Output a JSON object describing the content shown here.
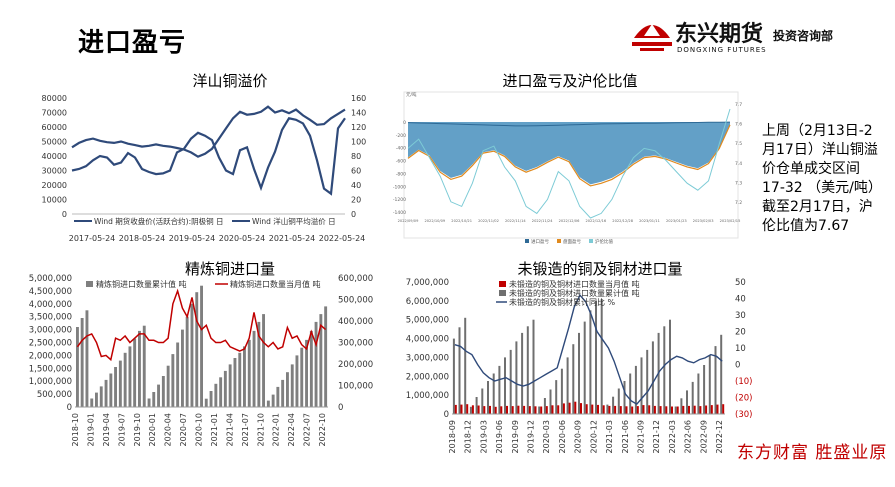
{
  "slide": {
    "title": "进口盈亏",
    "logo_cn": "东兴期货",
    "logo_en": "DONGXING FUTURES",
    "logo_sub": "投资咨询部",
    "note": "上周（2月13日-2月17日）洋山铜溢价仓单成交区间17-32 （美元/吨）截至2月17日，沪伦比值为7.67",
    "footer_brand": "东方财富 胜盛业原",
    "colors": {
      "logo_red": "#c00000",
      "navy": "#2f4a7a",
      "gray_bar": "#7f7f7f",
      "red_line": "#c00000"
    }
  },
  "chart_data": [
    {
      "id": "yangshan",
      "type": "line",
      "title": "洋山铜溢价",
      "x_ticks": [
        "2017-05-24",
        "2018-05-24",
        "2019-05-24",
        "2020-05-24",
        "2021-05-24",
        "2022-05-24"
      ],
      "y_left_ticks": [
        "0",
        "10000",
        "20000",
        "30000",
        "40000",
        "50000",
        "60000",
        "70000",
        "80000"
      ],
      "y_right_ticks": [
        "0",
        "20",
        "40",
        "60",
        "80",
        "100",
        "120",
        "140",
        "160"
      ],
      "ylim_left": [
        0,
        80000
      ],
      "ylim_right": [
        0,
        160
      ],
      "series": [
        {
          "name": "Wind 期货收盘价(活跃合约):阴极铜 日",
          "axis": "left",
          "values": [
            46000,
            49000,
            51000,
            52000,
            50500,
            49500,
            49000,
            50000,
            48500,
            47500,
            46500,
            47000,
            48000,
            47000,
            46500,
            45500,
            44500,
            42500,
            39500,
            41500,
            45000,
            52000,
            59000,
            66000,
            70500,
            68500,
            69000,
            70500,
            74000,
            70000,
            71500,
            69500,
            72000,
            68000,
            65000,
            61500,
            62000,
            66000,
            69000,
            72000
          ]
        },
        {
          "name": "Wind 洋山铜平均溢价 日",
          "axis": "right",
          "values": [
            60,
            62,
            66,
            74,
            80,
            78,
            68,
            71,
            84,
            78,
            62,
            58,
            55,
            56,
            60,
            85,
            90,
            104,
            112,
            108,
            102,
            78,
            60,
            55,
            88,
            92,
            62,
            36,
            64,
            86,
            116,
            132,
            130,
            125,
            108,
            74,
            35,
            28,
            118,
            132
          ]
        }
      ]
    },
    {
      "id": "import_profit",
      "type": "area",
      "title": "进口盈亏及沪伦比值",
      "y_left_unit": "元/吨",
      "y_left_ticks": [
        "0",
        "-200",
        "-400",
        "-600",
        "-800",
        "-1000",
        "-1200",
        "-1400"
      ],
      "y_right_ticks": [
        "7.7",
        "7.6",
        "7.5",
        "7.4",
        "7.3",
        "7.2"
      ],
      "x_ticks": [
        "2022/09/09",
        "2022/10/09",
        "2022/10/21",
        "2022/11/02",
        "2022/11/14",
        "2022/11/24",
        "2022/12/06",
        "2022/12/16",
        "2022/12/28",
        "2023/01/11",
        "2023/01/23",
        "2023/02/03",
        "2023/02/15"
      ],
      "legend": [
        "进口盈亏",
        "盘面盈亏",
        "沪伦比值"
      ],
      "ylim_left": [
        -1400,
        0
      ],
      "ylim_right": [
        7.2,
        7.7
      ],
      "series": [
        {
          "name": "进口盈亏",
          "axis": "left",
          "values": [
            -10,
            -15,
            -20,
            -25,
            -30,
            -35,
            -40,
            -45,
            -50,
            -55,
            -60,
            -60,
            -58,
            -55,
            -50,
            -45,
            -40,
            -35,
            -30,
            -28,
            -25,
            -22,
            -20,
            -18,
            -15,
            -12,
            -10,
            -8,
            -5,
            -3,
            -1
          ]
        },
        {
          "name": "盘面盈亏",
          "axis": "left",
          "values": [
            -550,
            -430,
            -520,
            -760,
            -870,
            -820,
            -660,
            -470,
            -440,
            -520,
            -680,
            -760,
            -700,
            -610,
            -530,
            -600,
            -860,
            -970,
            -930,
            -870,
            -770,
            -640,
            -540,
            -520,
            -560,
            -620,
            -680,
            -720,
            -630,
            -400,
            -40
          ]
        },
        {
          "name": "沪伦比值",
          "axis": "right",
          "values": [
            7.5,
            7.54,
            7.46,
            7.38,
            7.27,
            7.25,
            7.35,
            7.49,
            7.51,
            7.42,
            7.36,
            7.25,
            7.22,
            7.28,
            7.4,
            7.36,
            7.25,
            7.2,
            7.22,
            7.28,
            7.38,
            7.46,
            7.5,
            7.49,
            7.45,
            7.4,
            7.35,
            7.32,
            7.36,
            7.52,
            7.67
          ]
        }
      ]
    },
    {
      "id": "refined_copper",
      "type": "bar",
      "title": "精炼铜进口量",
      "x_ticks": [
        "2018-10",
        "2019-01",
        "2019-04",
        "2019-07",
        "2019-10",
        "2020-01",
        "2020-04",
        "2020-07",
        "2020-10",
        "2021-01",
        "2021-04",
        "2021-07",
        "2021-10",
        "2022-01",
        "2022-04",
        "2022-07",
        "2022-10"
      ],
      "y_left_ticks": [
        "0",
        "500,000",
        "1,000,000",
        "1,500,000",
        "2,000,000",
        "2,500,000",
        "3,000,000",
        "3,500,000",
        "4,000,000",
        "4,500,000",
        "5,000,000"
      ],
      "y_right_ticks": [
        "0",
        "100,000",
        "200,000",
        "300,000",
        "400,000",
        "500,000",
        "600,000"
      ],
      "ylim_left": [
        0,
        5000000
      ],
      "ylim_right": [
        0,
        600000
      ],
      "legend": [
        "精炼铜进口数量累计值 吨",
        "精炼铜进口数量当月值 吨"
      ],
      "series": [
        {
          "name": "精炼铜进口数量累计值 吨",
          "axis": "left",
          "values": [
            3100000,
            3450000,
            3750000,
            330000,
            560000,
            800000,
            1050000,
            1300000,
            1550000,
            1800000,
            2100000,
            2350000,
            2650000,
            2950000,
            3150000,
            330000,
            580000,
            870000,
            1200000,
            1600000,
            2050000,
            2500000,
            3000000,
            3500000,
            4000000,
            4450000,
            4700000,
            320000,
            620000,
            900000,
            1150000,
            1400000,
            1650000,
            1900000,
            2100000,
            2350000,
            2600000,
            2950000,
            3300000,
            3600000,
            250000,
            480000,
            780000,
            1050000,
            1350000,
            1650000,
            2000000,
            2300000,
            2600000,
            2950000,
            3300000,
            3600000,
            3900000
          ]
        },
        {
          "name": "精炼铜进口数量当月值 吨",
          "axis": "right",
          "values": [
            280000,
            310000,
            330000,
            340000,
            300000,
            235000,
            240000,
            220000,
            320000,
            310000,
            330000,
            300000,
            320000,
            340000,
            340000,
            310000,
            310000,
            300000,
            300000,
            320000,
            480000,
            540000,
            460000,
            420000,
            510000,
            400000,
            360000,
            380000,
            320000,
            300000,
            300000,
            310000,
            280000,
            270000,
            260000,
            270000,
            320000,
            440000,
            330000,
            300000,
            280000,
            300000,
            270000,
            280000,
            370000,
            320000,
            330000,
            290000,
            270000,
            350000,
            290000,
            380000,
            360000
          ]
        }
      ]
    },
    {
      "id": "unwrought_copper",
      "type": "bar",
      "title": "未锻造的铜及铜材进口量",
      "x_ticks": [
        "2018-09",
        "2018-12",
        "2019-03",
        "2019-06",
        "2019-09",
        "2019-12",
        "2020-03",
        "2020-06",
        "2020-09",
        "2020-12",
        "2021-03",
        "2021-06",
        "2021-09",
        "2021-12",
        "2022-03",
        "2022-06",
        "2022-09",
        "2022-12"
      ],
      "y_left_ticks": [
        "0",
        "1,000,000",
        "2,000,000",
        "3,000,000",
        "4,000,000",
        "5,000,000",
        "6,000,000",
        "7,000,000"
      ],
      "y_right_ticks": [
        "(30)",
        "(20)",
        "(10)",
        "0",
        "10",
        "20",
        "30",
        "40",
        "50"
      ],
      "ylim_left": [
        0,
        7000000
      ],
      "ylim_right": [
        -30,
        50
      ],
      "legend": [
        "未锻造的铜及铜材进口数量当月值 吨",
        "未锻造的铜及铜材进口数量累计值 吨",
        "未锻造的铜及铜材累计同比 %"
      ],
      "series": [
        {
          "name": "未锻造的铜及铜材进口数量当月值 吨",
          "axis": "left",
          "values": [
            480000,
            500000,
            520000,
            460000,
            450000,
            420000,
            430000,
            380000,
            410000,
            430000,
            420000,
            440000,
            430000,
            420000,
            410000,
            400000,
            420000,
            460000,
            460000,
            560000,
            600000,
            650000,
            580000,
            520000,
            500000,
            480000,
            460000,
            430000,
            430000,
            420000,
            410000,
            400000,
            420000,
            470000,
            460000,
            430000,
            420000,
            410000,
            400000,
            400000,
            430000,
            430000,
            440000,
            420000,
            450000,
            470000,
            500000,
            520000
          ]
        },
        {
          "name": "未锻造的铜及铜材进口数量累计值 吨",
          "axis": "left",
          "values": [
            4000000,
            4600000,
            5100000,
            380000,
            900000,
            1350000,
            1750000,
            2150000,
            2550000,
            3000000,
            3400000,
            3850000,
            4300000,
            4650000,
            5000000,
            400000,
            850000,
            1300000,
            1800000,
            2400000,
            3000000,
            3700000,
            4300000,
            4900000,
            5500000,
            6000000,
            6100000,
            500000,
            920000,
            1350000,
            1750000,
            2150000,
            2550000,
            3000000,
            3400000,
            3850000,
            4300000,
            4650000,
            5000000,
            400000,
            830000,
            1250000,
            1700000,
            2150000,
            2600000,
            3100000,
            3600000,
            4200000
          ]
        },
        {
          "name": "未锻造的铜及铜材累计同比 %",
          "axis": "right",
          "values": [
            12,
            11,
            8,
            6,
            0,
            -5,
            -8,
            -10,
            -9,
            -8,
            -10,
            -12,
            -13,
            -12,
            -10,
            -8,
            -6,
            -4,
            -2,
            10,
            22,
            35,
            42,
            38,
            30,
            20,
            15,
            10,
            2,
            -8,
            -18,
            -22,
            -24,
            -20,
            -16,
            -10,
            -4,
            0,
            3,
            5,
            4,
            2,
            1,
            3,
            4,
            6,
            5,
            2
          ]
        }
      ]
    }
  ]
}
